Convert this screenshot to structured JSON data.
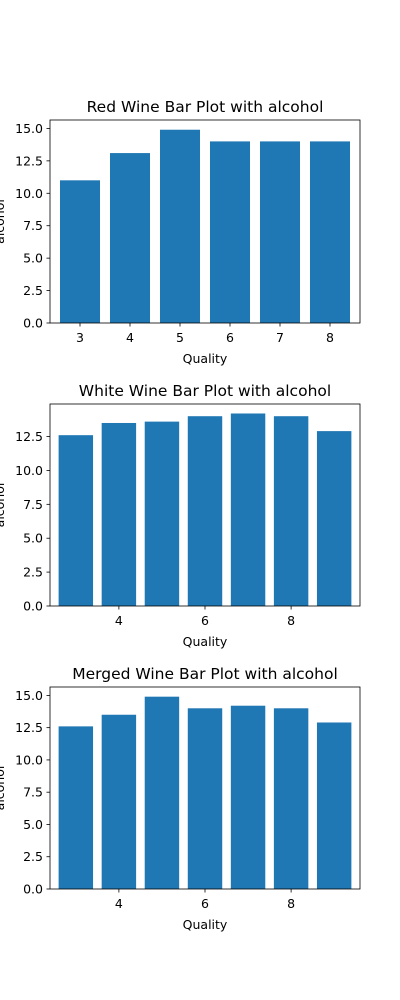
{
  "chart_data": [
    {
      "type": "bar",
      "title": "Red Wine Bar Plot with alcohol",
      "xlabel": "Quality",
      "ylabel": "alcohol",
      "categories": [
        3,
        4,
        5,
        6,
        7,
        8
      ],
      "values": [
        11.0,
        13.1,
        14.9,
        14.0,
        14.0,
        14.0
      ],
      "xlim": [
        2.4,
        8.6
      ],
      "ylim": [
        0,
        15.65
      ],
      "xticks": [
        3,
        4,
        5,
        6,
        7,
        8
      ],
      "xtick_labels": [
        "3",
        "4",
        "5",
        "6",
        "7",
        "8"
      ],
      "yticks": [
        0,
        2.5,
        5,
        7.5,
        10,
        12.5,
        15
      ],
      "ytick_labels": [
        "0.0",
        "2.5",
        "5.0",
        "7.5",
        "10.0",
        "12.5",
        "15.0"
      ],
      "bar_color": "#1f77b4",
      "grid": false
    },
    {
      "type": "bar",
      "title": "White Wine Bar Plot with alcohol",
      "xlabel": "Quality",
      "ylabel": "alcohol",
      "categories": [
        3,
        4,
        5,
        6,
        7,
        8,
        9
      ],
      "values": [
        12.6,
        13.5,
        13.6,
        14.0,
        14.2,
        14.0,
        12.9
      ],
      "xlim": [
        2.4,
        9.6
      ],
      "ylim": [
        0,
        14.9
      ],
      "xticks": [
        4,
        6,
        8
      ],
      "xtick_labels": [
        "4",
        "6",
        "8"
      ],
      "yticks": [
        0,
        2.5,
        5,
        7.5,
        10,
        12.5
      ],
      "ytick_labels": [
        "0.0",
        "2.5",
        "5.0",
        "7.5",
        "10.0",
        "12.5"
      ],
      "bar_color": "#1f77b4",
      "grid": false
    },
    {
      "type": "bar",
      "title": "Merged Wine Bar Plot with alcohol",
      "xlabel": "Quality",
      "ylabel": "alcohol",
      "categories": [
        3,
        4,
        5,
        6,
        7,
        8,
        9
      ],
      "values": [
        12.6,
        13.5,
        14.9,
        14.0,
        14.2,
        14.0,
        12.9
      ],
      "xlim": [
        2.4,
        9.6
      ],
      "ylim": [
        0,
        15.65
      ],
      "xticks": [
        4,
        6,
        8
      ],
      "xtick_labels": [
        "4",
        "6",
        "8"
      ],
      "yticks": [
        0,
        2.5,
        5,
        7.5,
        10,
        12.5,
        15
      ],
      "ytick_labels": [
        "0.0",
        "2.5",
        "5.0",
        "7.5",
        "10.0",
        "12.5",
        "15.0"
      ],
      "bar_color": "#1f77b4",
      "grid": false
    }
  ]
}
